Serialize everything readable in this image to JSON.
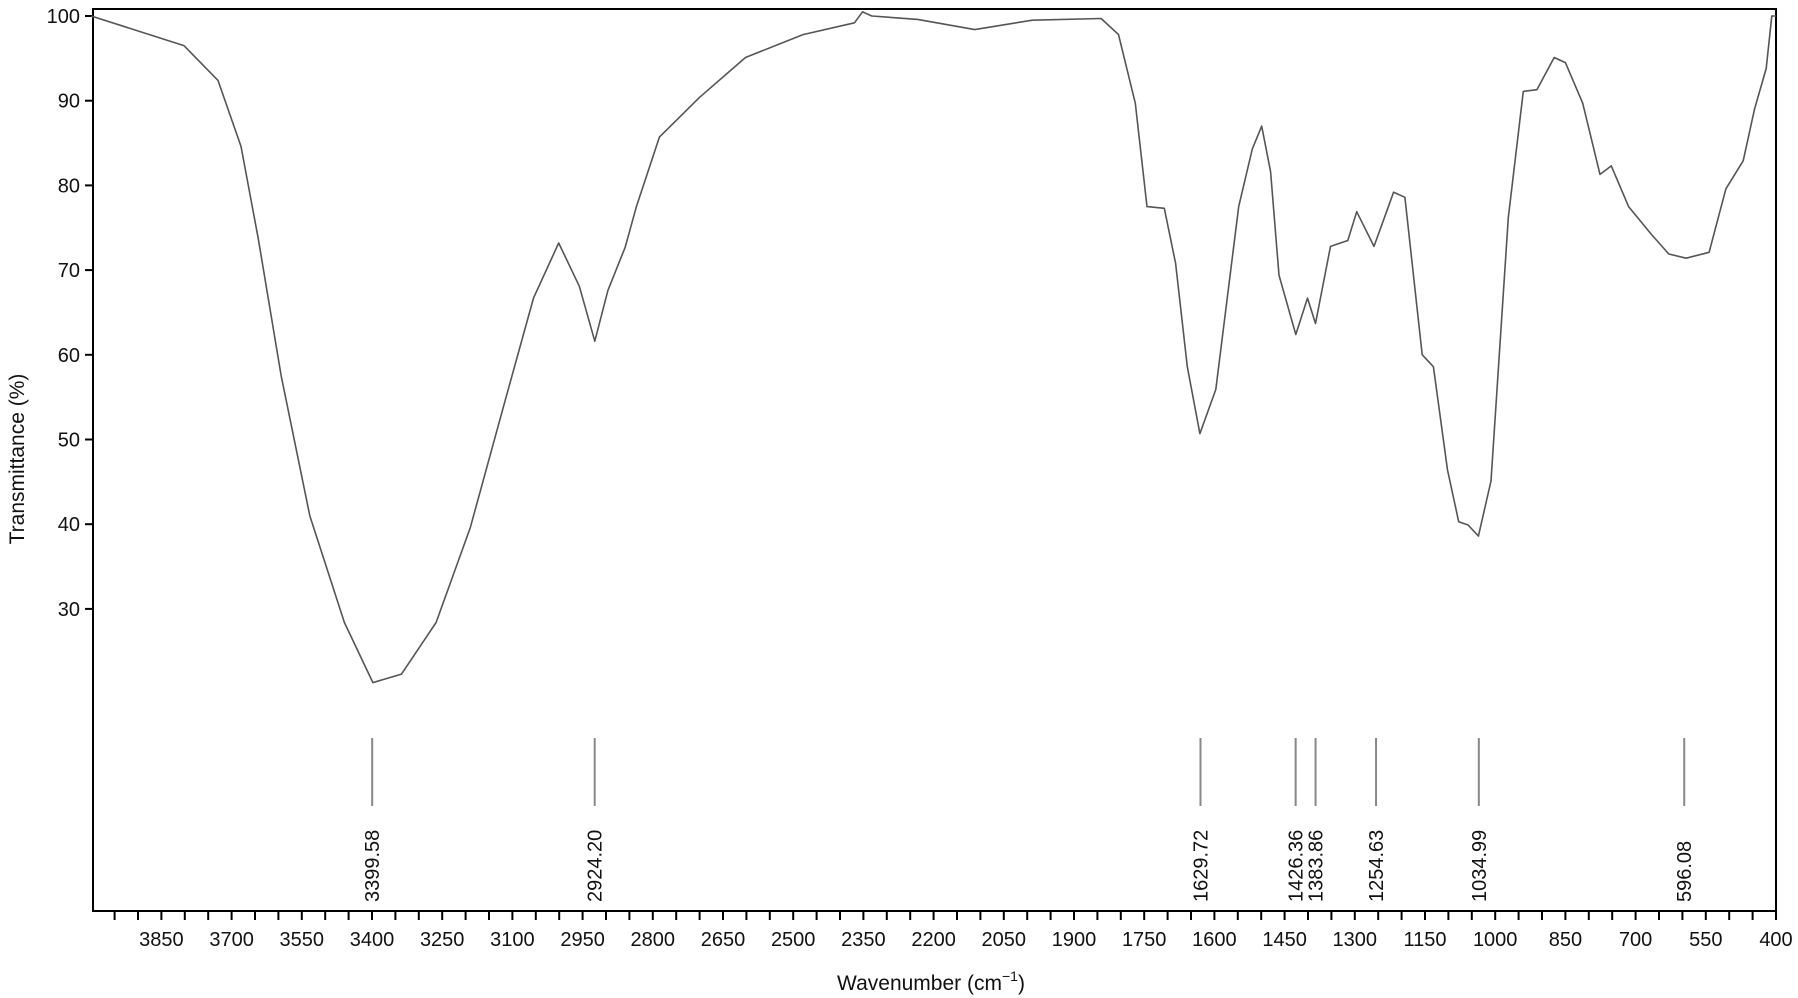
{
  "chart_data": {
    "type": "line",
    "title": "",
    "xlabel": "Wavenumber (cm",
    "xlabel_sup": "−1",
    "xlabel_close": ")",
    "ylabel": "Transmittance (%)",
    "xlim": [
      4000,
      400
    ],
    "ylim": [
      -6,
      101
    ],
    "x_reversed": true,
    "grid": false,
    "legend": "none",
    "line_color": "#555555",
    "x_ticks": [
      3850,
      3700,
      3550,
      3400,
      3250,
      3100,
      2950,
      2800,
      2650,
      2500,
      2350,
      2200,
      2050,
      1900,
      1750,
      1600,
      1450,
      1300,
      1150,
      1000,
      850,
      700,
      550,
      400
    ],
    "y_ticks": [
      30,
      40,
      50,
      60,
      70,
      80,
      90,
      100
    ],
    "peak_labels": [
      "3399.58",
      "2924.20",
      "1629.72",
      "1426.36",
      "1383.86",
      "1254.63",
      "1034.99",
      "596.08"
    ],
    "series": [
      {
        "x": [
          4000,
          3802,
          3729,
          3680,
          3643,
          3594,
          3533,
          3459,
          3398,
          3337,
          3263,
          3190,
          3116,
          3055,
          3001,
          2957,
          2924,
          2896,
          2859,
          2835,
          2786,
          2700,
          2602,
          2479,
          2369,
          2352,
          2332,
          2234,
          2112,
          1989,
          1842,
          1805,
          1769,
          1744,
          1707,
          1683,
          1658,
          1631,
          1597,
          1548,
          1519,
          1499,
          1480,
          1462,
          1426,
          1401,
          1384,
          1352,
          1315,
          1296,
          1259,
          1217,
          1193,
          1156,
          1132,
          1102,
          1078,
          1058,
          1036,
          1009,
          972,
          940,
          911,
          874,
          850,
          813,
          776,
          752,
          715,
          666,
          629,
          592,
          543,
          507,
          470,
          446,
          421,
          409,
          400
        ],
        "y": [
          100,
          96.5,
          92.4,
          84.6,
          73.7,
          57.5,
          41.0,
          28.4,
          21.3,
          22.3,
          28.4,
          39.6,
          54.5,
          66.7,
          73.2,
          68.1,
          61.6,
          67.6,
          72.7,
          77.5,
          85.7,
          90.4,
          95.1,
          97.8,
          99.2,
          100.5,
          100,
          99.6,
          98.4,
          99.5,
          99.7,
          97.8,
          89.7,
          77.5,
          77.3,
          70.8,
          58.6,
          50.7,
          55.9,
          77.5,
          84.3,
          87,
          81.6,
          69.4,
          62.4,
          66.7,
          63.7,
          72.8,
          73.5,
          76.9,
          72.8,
          79.2,
          78.6,
          60,
          58.6,
          46.4,
          40.3,
          39.9,
          38.6,
          45.1,
          76.2,
          91.1,
          91.3,
          95.1,
          94.5,
          89.7,
          81.3,
          82.3,
          77.5,
          74.2,
          71.9,
          71.4,
          72.1,
          79.6,
          82.9,
          89,
          93.8,
          100,
          100
        ]
      }
    ]
  }
}
